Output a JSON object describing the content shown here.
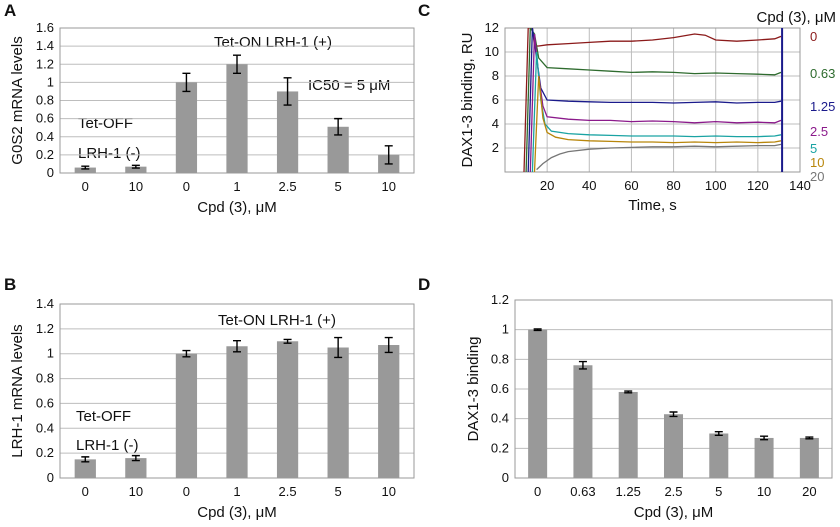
{
  "chart_data": [
    {
      "panel": "A",
      "type": "bar",
      "ylabel": "G0S2 mRNA levels",
      "xlabel": "Cpd (3), μM",
      "categories": [
        "0",
        "10",
        "0",
        "1",
        "2.5",
        "5",
        "10"
      ],
      "values": [
        0.06,
        0.07,
        1.0,
        1.2,
        0.9,
        0.51,
        0.2
      ],
      "errors": [
        0.015,
        0.015,
        0.1,
        0.1,
        0.15,
        0.09,
        0.1
      ],
      "ylim": [
        0,
        1.6
      ],
      "yticks": [
        "0",
        "0.2",
        "0.4",
        "0.6",
        "0.8",
        "1",
        "1.2",
        "1.4",
        "1.6"
      ],
      "annotations": {
        "tet_on": "Tet-ON  LRH-1 (+)",
        "ic50": "IC50 = 5 μM",
        "tet_off": "Tet-OFF",
        "lrh_minus": "LRH-1 (-)"
      }
    },
    {
      "panel": "B",
      "type": "bar",
      "ylabel": "LRH-1 mRNA levels",
      "xlabel": "Cpd (3), μM",
      "categories": [
        "0",
        "10",
        "0",
        "1",
        "2.5",
        "5",
        "10"
      ],
      "values": [
        0.15,
        0.16,
        1.0,
        1.06,
        1.1,
        1.05,
        1.07
      ],
      "errors": [
        0.02,
        0.02,
        0.025,
        0.045,
        0.015,
        0.08,
        0.06
      ],
      "ylim": [
        0,
        1.4
      ],
      "yticks": [
        "0",
        "0.2",
        "0.4",
        "0.6",
        "0.8",
        "1",
        "1.2",
        "1.4"
      ],
      "annotations": {
        "tet_on": "Tet-ON  LRH-1 (+)",
        "tet_off": "Tet-OFF",
        "lrh_minus": "LRH-1 (-)"
      }
    },
    {
      "panel": "C",
      "type": "line",
      "ylabel": "DAX1-3  binding, RU",
      "xlabel": "Time, s",
      "legend_title": "Cpd (3), μM",
      "xlim": [
        0,
        140
      ],
      "ylim": [
        0,
        12
      ],
      "xticks": [
        "20",
        "40",
        "60",
        "80",
        "100",
        "120",
        "140"
      ],
      "yticks": [
        "2",
        "4",
        "6",
        "8",
        "10",
        "12"
      ],
      "series": [
        {
          "name": "0",
          "color": "#8b1a1a",
          "x": [
            9,
            11,
            13,
            14,
            16,
            20,
            30,
            40,
            50,
            60,
            70,
            80,
            90,
            95,
            100,
            110,
            120,
            128,
            131
          ],
          "y": [
            0,
            12,
            12,
            10.5,
            10.5,
            10.6,
            10.7,
            10.8,
            10.9,
            10.9,
            11.0,
            11.2,
            11.5,
            11.4,
            11.0,
            10.9,
            11.0,
            11.1,
            11.3
          ]
        },
        {
          "name": "0.63",
          "color": "#2e6b2e",
          "x": [
            10,
            12,
            14,
            16,
            20,
            30,
            40,
            50,
            60,
            70,
            80,
            90,
            100,
            110,
            120,
            128,
            131
          ],
          "y": [
            0,
            12,
            11.5,
            9.5,
            8.7,
            8.6,
            8.5,
            8.4,
            8.3,
            8.35,
            8.3,
            8.2,
            8.25,
            8.2,
            8.15,
            8.1,
            8.3
          ]
        },
        {
          "name": "1.25",
          "color": "#1a1a8b",
          "x": [
            11,
            13,
            15,
            17,
            20,
            30,
            40,
            50,
            60,
            70,
            80,
            90,
            100,
            110,
            120,
            128,
            131
          ],
          "y": [
            0,
            12,
            9.5,
            7.0,
            6.0,
            5.9,
            5.85,
            5.8,
            5.8,
            5.8,
            5.75,
            5.8,
            5.85,
            5.75,
            5.8,
            5.8,
            5.9
          ]
        },
        {
          "name": "2.5",
          "color": "#8b1a8b",
          "x": [
            12,
            14,
            16,
            18,
            20,
            30,
            40,
            50,
            60,
            70,
            80,
            90,
            100,
            110,
            120,
            128,
            131
          ],
          "y": [
            0,
            11.5,
            8.0,
            5.5,
            4.6,
            4.4,
            4.3,
            4.3,
            4.2,
            4.25,
            4.2,
            4.1,
            4.2,
            4.1,
            4.15,
            4.1,
            4.3
          ]
        },
        {
          "name": "5",
          "color": "#1aa3a3",
          "x": [
            13,
            15,
            17,
            19,
            22,
            30,
            40,
            50,
            60,
            70,
            80,
            90,
            100,
            110,
            120,
            128,
            131
          ],
          "y": [
            0,
            10.0,
            6.0,
            4.0,
            3.4,
            3.2,
            3.1,
            3.05,
            3.0,
            3.0,
            3.0,
            2.95,
            3.0,
            2.95,
            2.95,
            3.0,
            3.1
          ]
        },
        {
          "name": "10",
          "color": "#b8860b",
          "x": [
            14,
            16,
            18,
            20,
            24,
            30,
            40,
            50,
            60,
            70,
            80,
            90,
            100,
            110,
            120,
            128,
            131
          ],
          "y": [
            0,
            8.0,
            4.5,
            3.3,
            2.9,
            2.7,
            2.6,
            2.55,
            2.5,
            2.5,
            2.45,
            2.5,
            2.45,
            2.5,
            2.45,
            2.5,
            2.6
          ]
        },
        {
          "name": "20",
          "color": "#777777",
          "x": [
            15,
            18,
            22,
            26,
            30,
            40,
            50,
            60,
            70,
            80,
            90,
            100,
            110,
            120,
            128,
            131
          ],
          "y": [
            0.2,
            0.7,
            1.2,
            1.5,
            1.7,
            1.9,
            2.0,
            2.05,
            2.1,
            2.1,
            2.15,
            2.1,
            2.15,
            2.2,
            2.2,
            2.3
          ]
        }
      ]
    },
    {
      "panel": "D",
      "type": "bar",
      "ylabel": "DAX1-3 binding",
      "xlabel": "Cpd (3), μM",
      "categories": [
        "0",
        "0.63",
        "1.25",
        "2.5",
        "5",
        "10",
        "20"
      ],
      "values": [
        1.0,
        0.76,
        0.58,
        0.43,
        0.3,
        0.27,
        0.27
      ],
      "errors": [
        0.005,
        0.025,
        0.006,
        0.015,
        0.012,
        0.012,
        0.006
      ],
      "ylim": [
        0,
        1.2
      ],
      "yticks": [
        "0",
        "0.2",
        "0.4",
        "0.6",
        "0.8",
        "1",
        "1.2"
      ]
    }
  ]
}
